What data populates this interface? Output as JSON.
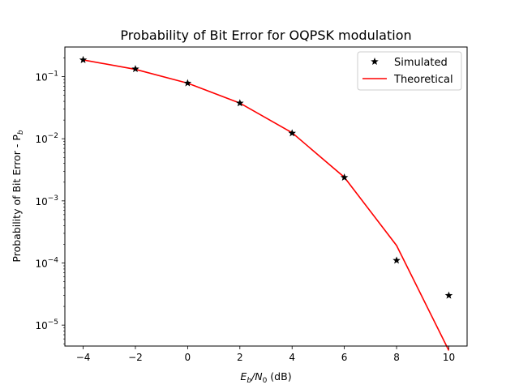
{
  "chart_data": {
    "type": "line",
    "title": "Probability of Bit Error for OQPSK modulation",
    "xlabel": "E_b/N_0 (dB)",
    "xlabel_parts": {
      "main1": "E",
      "sub1": "b",
      "slash": "/N",
      "sub2": "0",
      "tail": " (dB)"
    },
    "ylabel": "Probability of Bit Error - P_b",
    "ylabel_parts": {
      "main": "Probability of Bit Error - P",
      "sub": "b"
    },
    "x": [
      -4,
      -2,
      0,
      2,
      4,
      6,
      8,
      10
    ],
    "xlim": [
      -4.7,
      10.7
    ],
    "ylim": [
      4.6e-06,
      0.3
    ],
    "yscale": "log",
    "xticks": [
      -4,
      -2,
      0,
      2,
      4,
      6,
      8,
      10
    ],
    "xtick_labels": [
      "−4",
      "−2",
      "0",
      "2",
      "4",
      "6",
      "8",
      "10"
    ],
    "yticks": [
      {
        "exp": -1,
        "base": "10",
        "sup": "−1"
      },
      {
        "exp": -2,
        "base": "10",
        "sup": "−2"
      },
      {
        "exp": -3,
        "base": "10",
        "sup": "−3"
      },
      {
        "exp": -4,
        "base": "10",
        "sup": "−4"
      },
      {
        "exp": -5,
        "base": "10",
        "sup": "−5"
      }
    ],
    "series": [
      {
        "name": "Simulated",
        "style": "markers",
        "marker": "star",
        "color": "#000000",
        "values": [
          0.186,
          0.133,
          0.0786,
          0.0375,
          0.0123,
          0.00238,
          0.00011,
          3e-05
        ]
      },
      {
        "name": "Theoretical",
        "style": "line",
        "color": "#ff0000",
        "values": [
          0.186,
          0.131,
          0.0786,
          0.0375,
          0.0125,
          0.0024,
          0.000191,
          3.9e-06
        ]
      }
    ],
    "legend": {
      "position": "top-right",
      "entries": [
        "Simulated",
        "Theoretical"
      ]
    }
  }
}
